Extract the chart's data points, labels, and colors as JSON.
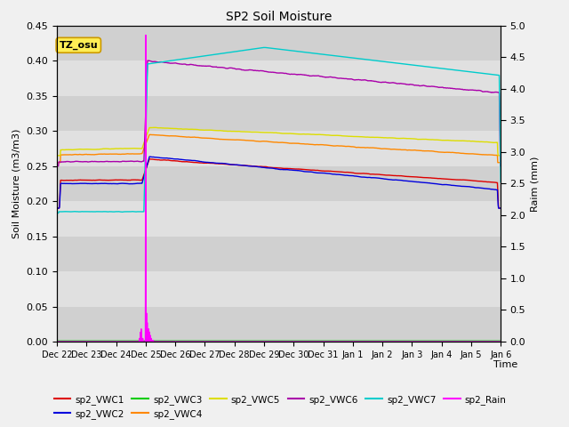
{
  "title": "SP2 Soil Moisture",
  "xlabel": "Time",
  "ylabel_left": "Soil Moisture (m3/m3)",
  "ylabel_right": "Raim (mm)",
  "ylim_left": [
    0.0,
    0.45
  ],
  "ylim_right": [
    0.0,
    5.0
  ],
  "yticks_left": [
    0.0,
    0.05,
    0.1,
    0.15,
    0.2,
    0.25,
    0.3,
    0.35,
    0.4,
    0.45
  ],
  "yticks_right": [
    0.0,
    0.5,
    1.0,
    1.5,
    2.0,
    2.5,
    3.0,
    3.5,
    4.0,
    4.5,
    5.0
  ],
  "fig_facecolor": "#f0f0f0",
  "plot_bg_color": "#e8e8e8",
  "annotation_text": "TZ_osu",
  "annotation_facecolor": "#ffee55",
  "annotation_edgecolor": "#cc9900",
  "colors": {
    "VWC1": "#dd0000",
    "VWC2": "#0000dd",
    "VWC3": "#00cc00",
    "VWC4": "#ff8800",
    "VWC5": "#dddd00",
    "VWC6": "#aa00aa",
    "VWC7": "#00cccc",
    "Rain": "#ff00ff"
  },
  "tick_labels": [
    "Dec 22",
    "Dec 23",
    "Dec 24",
    "Dec 25",
    "Dec 26",
    "Dec 27",
    "Dec 28",
    "Dec 29",
    "Dec 30",
    "Dec 31",
    "Jan 1",
    "Jan 2",
    "Jan 3",
    "Jan 4",
    "Jan 5",
    "Jan 6"
  ],
  "n_points": 1200,
  "rain_day": 3.0,
  "total_days": 15
}
